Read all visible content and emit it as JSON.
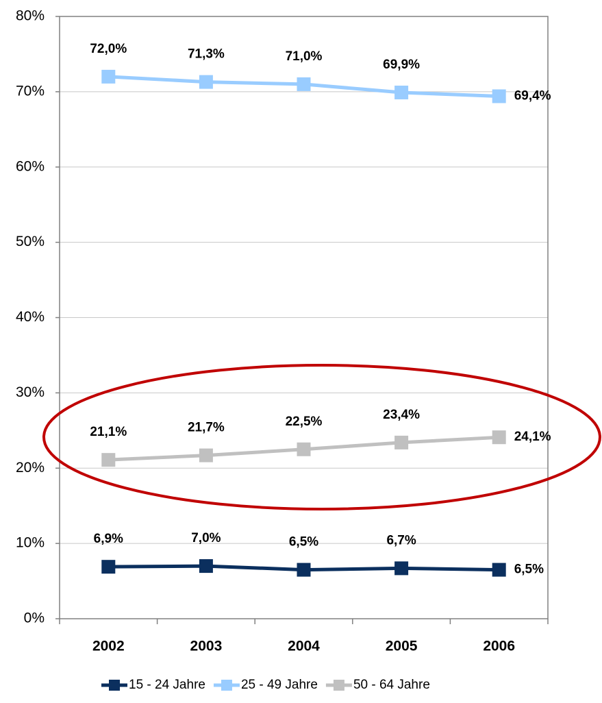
{
  "chart_data": {
    "type": "line",
    "categories": [
      "2002",
      "2003",
      "2004",
      "2005",
      "2006"
    ],
    "series": [
      {
        "name": "15 - 24 Jahre",
        "color": "#0b2f5e",
        "values": [
          6.9,
          7.0,
          6.5,
          6.7,
          6.5
        ],
        "value_labels": [
          "6,9%",
          "7,0%",
          "6,5%",
          "6,7%",
          "6,5%"
        ]
      },
      {
        "name": "25 - 49 Jahre",
        "color": "#99ccff",
        "values": [
          72.0,
          71.3,
          71.0,
          69.9,
          69.4
        ],
        "value_labels": [
          "72,0%",
          "71,3%",
          "71,0%",
          "69,9%",
          "69,4%"
        ]
      },
      {
        "name": "50 - 64 Jahre",
        "color": "#c0c0c0",
        "values": [
          21.1,
          21.7,
          22.5,
          23.4,
          24.1
        ],
        "value_labels": [
          "21,1%",
          "21,7%",
          "22,5%",
          "23,4%",
          "24,1%"
        ]
      }
    ],
    "ylim": [
      0,
      80
    ],
    "yticks": [
      {
        "value": 0,
        "label": "0%"
      },
      {
        "value": 10,
        "label": "10%"
      },
      {
        "value": 20,
        "label": "20%"
      },
      {
        "value": 30,
        "label": "30%"
      },
      {
        "value": 40,
        "label": "40%"
      },
      {
        "value": 50,
        "label": "50%"
      },
      {
        "value": 60,
        "label": "60%"
      },
      {
        "value": 70,
        "label": "70%"
      },
      {
        "value": 80,
        "label": "80%"
      }
    ],
    "grid": true,
    "legend": "bottom"
  }
}
